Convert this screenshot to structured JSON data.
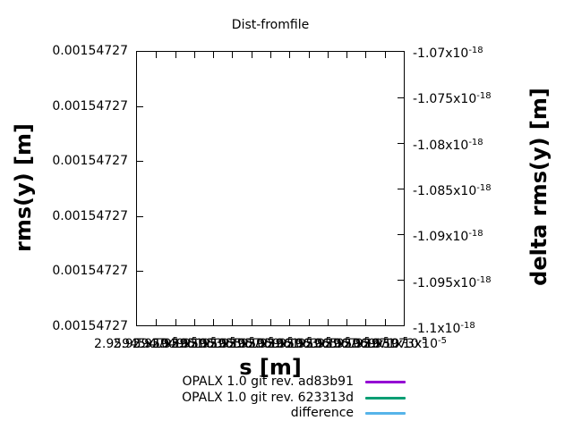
{
  "title": "Dist-fromfile",
  "axes": {
    "x": {
      "title": "s [m]",
      "ticks": [
        {
          "m": "2.95945x10",
          "e": "-5"
        },
        {
          "m": "2.95947x10",
          "e": "-5"
        },
        {
          "m": "2.95949x10",
          "e": "-5"
        },
        {
          "m": "2.95951x10",
          "e": "-5"
        },
        {
          "m": "2.95953x10",
          "e": "-5"
        },
        {
          "m": "2.95955x10",
          "e": "-5"
        },
        {
          "m": "2.95957x10",
          "e": "-5"
        },
        {
          "m": "2.95959x10",
          "e": "-5"
        },
        {
          "m": "2.95961x10",
          "e": "-5"
        },
        {
          "m": "2.95963x10",
          "e": "-5"
        },
        {
          "m": "2.95965x10",
          "e": "-5"
        },
        {
          "m": "2.95967x10",
          "e": "-5"
        },
        {
          "m": "2.95969x10",
          "e": "-5"
        },
        {
          "m": "2.95971x10",
          "e": "-5"
        },
        {
          "m": "2.95973x10",
          "e": "-5"
        }
      ]
    },
    "y_left": {
      "title": "rms(y) [m]",
      "ticks": [
        "0.00154727",
        "0.00154727",
        "0.00154727",
        "0.00154727",
        "0.00154727",
        "0.00154727"
      ]
    },
    "y_right": {
      "title": "delta rms(y) [m]",
      "ticks": [
        {
          "m": "-1.07x10",
          "e": "-18"
        },
        {
          "m": "-1.075x10",
          "e": "-18"
        },
        {
          "m": "-1.08x10",
          "e": "-18"
        },
        {
          "m": "-1.085x10",
          "e": "-18"
        },
        {
          "m": "-1.09x10",
          "e": "-18"
        },
        {
          "m": "-1.095x10",
          "e": "-18"
        },
        {
          "m": "-1.1x10",
          "e": "-18"
        }
      ]
    }
  },
  "legend": {
    "items": [
      {
        "label": "OPALX 1.0 git rev. ad83b91",
        "color": "#9400d3"
      },
      {
        "label": "OPALX 1.0 git rev. 623313d",
        "color": "#009e73"
      },
      {
        "label": "difference",
        "color": "#56b4e9"
      }
    ]
  },
  "chart_data": {
    "type": "line",
    "title": "Dist-fromfile",
    "xlabel": "s [m]",
    "ylabel": "rms(y) [m]",
    "y2label": "delta rms(y) [m]",
    "x_tick_labels_rendered": "overlapping illegible gnuplot labels, each of form 2.959..x10^-5, first visibly starting with 2.9 and last ending x10^-5",
    "x_tick_labels": [
      "2.95945x10^-5",
      "2.95947x10^-5",
      "2.95949x10^-5",
      "2.95951x10^-5",
      "2.95953x10^-5",
      "2.95955x10^-5",
      "2.95957x10^-5",
      "2.95959x10^-5",
      "2.95961x10^-5",
      "2.95963x10^-5",
      "2.95965x10^-5",
      "2.95967x10^-5",
      "2.95969x10^-5",
      "2.95971x10^-5",
      "2.95973x10^-5"
    ],
    "y_tick_labels": [
      "0.00154727",
      "0.00154727",
      "0.00154727",
      "0.00154727",
      "0.00154727",
      "0.00154727"
    ],
    "y2_tick_labels": [
      "-1.07x10^-18",
      "-1.075x10^-18",
      "-1.08x10^-18",
      "-1.085x10^-18",
      "-1.09x10^-18",
      "-1.095x10^-18",
      "-1.1x10^-18"
    ],
    "y2_range": [
      -1.1e-18,
      -1.07e-18
    ],
    "grid": false,
    "legend_position": "below-plot-right",
    "series": [
      {
        "name": "OPALX 1.0 git rev. ad83b91",
        "color": "#9400d3",
        "visible_points": []
      },
      {
        "name": "OPALX 1.0 git rev. 623313d",
        "color": "#009e73",
        "visible_points": []
      },
      {
        "name": "difference",
        "color": "#56b4e9",
        "visible_points": []
      }
    ],
    "note": "plot area renders empty (no visible curves); left axis shows identical repeated tick value"
  }
}
